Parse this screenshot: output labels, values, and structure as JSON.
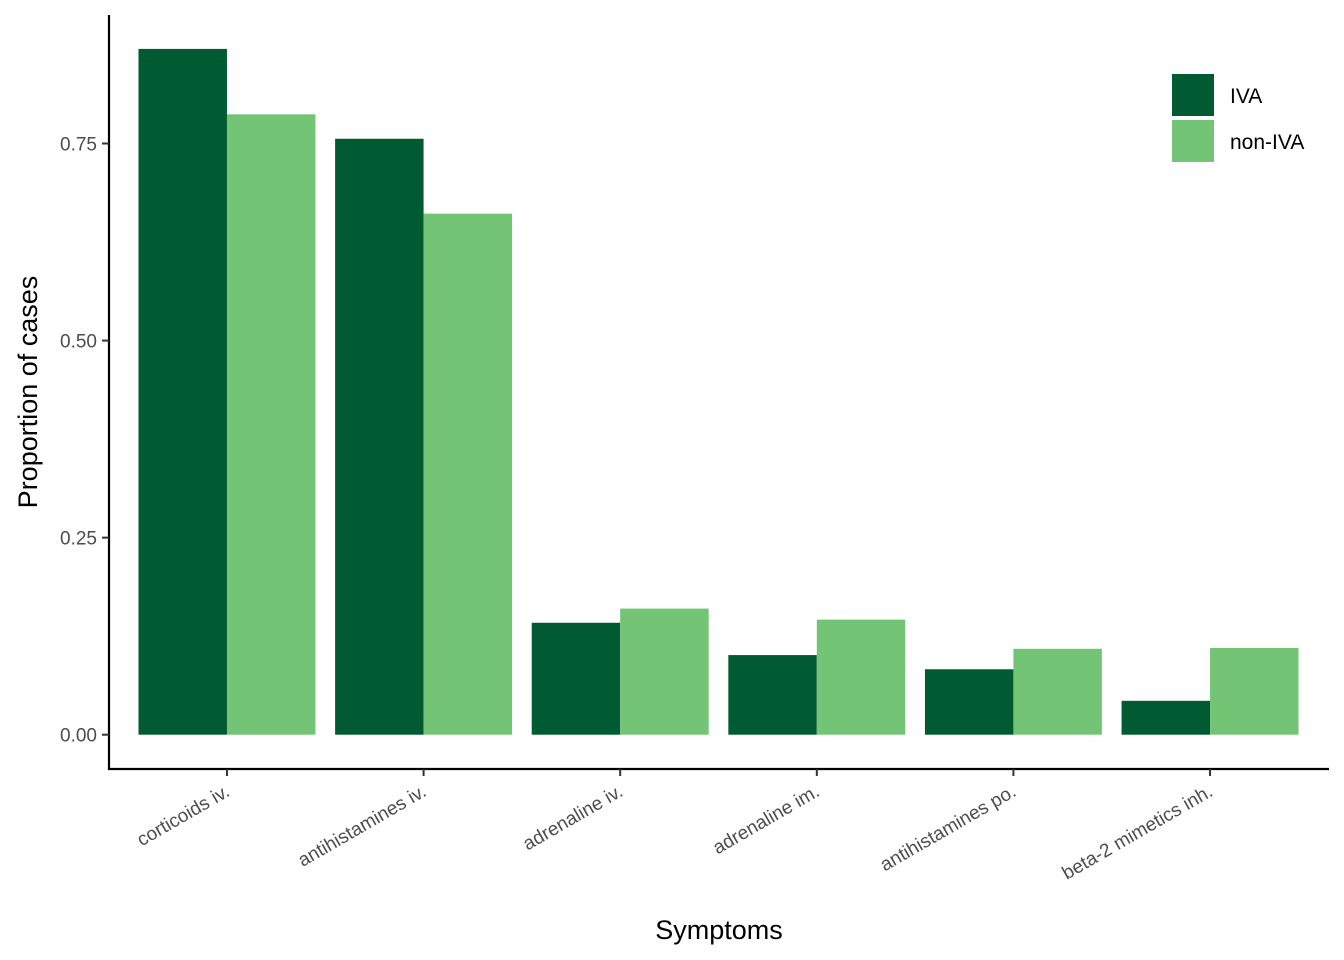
{
  "chart_data": {
    "type": "bar",
    "title": "",
    "xlabel": "Symptoms",
    "ylabel": "Proportion of cases",
    "categories": [
      "corticoids iv.",
      "antihistamines iv.",
      "adrenaline iv.",
      "adrenaline im.",
      "antihistamines po.",
      "beta-2 mimetics inh."
    ],
    "series": [
      {
        "name": "IVA",
        "color": "#005a32",
        "values": [
          0.87,
          0.756,
          0.142,
          0.101,
          0.083,
          0.043
        ]
      },
      {
        "name": "non-IVA",
        "color": "#74c476",
        "values": [
          0.787,
          0.661,
          0.16,
          0.146,
          0.109,
          0.11
        ]
      }
    ],
    "ylim": [
      -0.0435,
      0.913
    ],
    "yticks": [
      0,
      0.25,
      0.5,
      0.75
    ],
    "ytick_labels": [
      "0.00",
      "0.25",
      "0.50",
      "0.75"
    ],
    "grid": false,
    "legend_position": "top-right"
  }
}
